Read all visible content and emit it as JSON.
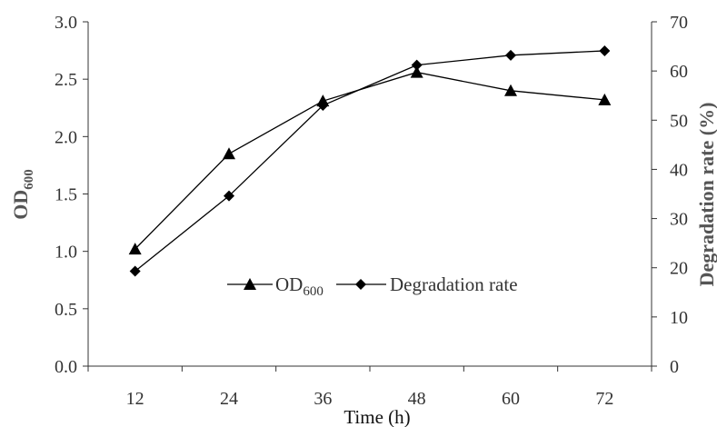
{
  "chart_data": {
    "type": "line",
    "x": [
      12,
      24,
      36,
      48,
      60,
      72
    ],
    "xlabel": "Time (h)",
    "ylabel": {
      "main": "OD",
      "sub": "600"
    },
    "y2label": "Degradation rate (%)",
    "ylim": [
      0,
      3.0
    ],
    "y2lim": [
      0,
      70
    ],
    "yticks": [
      "0.0",
      "0.5",
      "1.0",
      "1.5",
      "2.0",
      "2.5",
      "3.0"
    ],
    "y2ticks": [
      "0",
      "10",
      "20",
      "30",
      "40",
      "50",
      "60",
      "70"
    ],
    "grid": false,
    "legend_position": "center",
    "series": [
      {
        "name": "OD600",
        "legend_main": "OD",
        "legend_sub": "600",
        "axis": "left",
        "marker": "triangle",
        "values": [
          1.02,
          1.85,
          2.31,
          2.56,
          2.4,
          2.32
        ]
      },
      {
        "name": "Degradation rate",
        "legend_main": "Degradation rate",
        "legend_sub": "",
        "axis": "right",
        "marker": "diamond",
        "values": [
          19.3,
          34.6,
          53.0,
          61.2,
          63.2,
          64.1
        ]
      }
    ],
    "colors": {
      "line": "#000000",
      "axis": "#333333"
    }
  }
}
